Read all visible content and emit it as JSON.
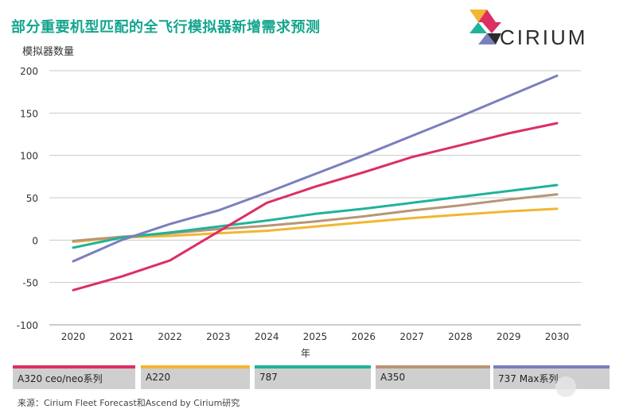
{
  "title": "部分重要机型匹配的全飞行模拟器新增需求预测",
  "brand": "CIRIUM",
  "source": "来源：Cirium Fleet Forecast和Ascend by Cirium研究",
  "colors": {
    "A320 ceo/neo系列": "#dc2f62",
    "A220": "#f2b632",
    "787": "#1fb39a",
    "A350": "#b89576",
    "737 Max系列": "#7b7fbd",
    "title": "#14a58e",
    "legend_bg": "#cfcfcf"
  },
  "chart_data": {
    "type": "line",
    "title": "部分重要机型匹配的全飞行模拟器新增需求预测",
    "ylabel": "模拟器数量",
    "xlabel": "年",
    "x": [
      "2020",
      "2021",
      "2022",
      "2023",
      "2024",
      "2025",
      "2026",
      "2027",
      "2028",
      "2029",
      "2030"
    ],
    "ylim": [
      -100,
      200
    ],
    "yticks": [
      "200",
      "150",
      "100",
      "50",
      "0",
      "-50",
      "-100"
    ],
    "grid": true,
    "legend_position": "bottom",
    "series": [
      {
        "name": "A320 ceo/neo系列",
        "values": [
          -59,
          -43,
          -24,
          10,
          44,
          63,
          80,
          98,
          112,
          126,
          138
        ]
      },
      {
        "name": "A220",
        "values": [
          -2,
          3,
          5,
          8,
          11,
          16,
          21,
          26,
          30,
          34,
          37
        ]
      },
      {
        "name": "787",
        "values": [
          -9,
          3,
          9,
          16,
          23,
          31,
          37,
          44,
          51,
          58,
          65
        ]
      },
      {
        "name": "A350",
        "values": [
          -1,
          4,
          8,
          13,
          17,
          22,
          28,
          35,
          41,
          48,
          54
        ]
      },
      {
        "name": "737 Max系列",
        "values": [
          -25,
          0,
          19,
          35,
          56,
          78,
          100,
          123,
          146,
          170,
          194
        ]
      }
    ]
  }
}
